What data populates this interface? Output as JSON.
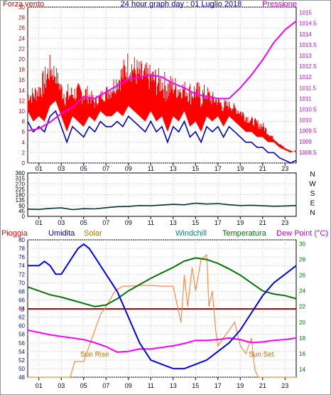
{
  "chart_data": [
    {
      "type": "line",
      "panel": "wind-pressure",
      "title": "24 hour graph day : 01 Luglio 2018",
      "left_label": "Forza vento",
      "right_label": "Pressione",
      "x_ticks": [
        "01",
        "03",
        "05",
        "07",
        "09",
        "11",
        "13",
        "15",
        "17",
        "19",
        "21",
        "23"
      ],
      "xlim": [
        0,
        24
      ],
      "y_left": {
        "min": 0,
        "max": 30,
        "ticks": [
          0,
          2,
          4,
          6,
          8,
          10,
          12,
          14,
          16,
          18,
          20,
          22,
          24,
          26,
          28,
          30
        ]
      },
      "y_right": {
        "min": 1008.0,
        "max": 1015.25,
        "ticks": [
          1008.5,
          1009,
          1009.5,
          1010,
          1010.5,
          1011,
          1011.5,
          1012,
          1012.5,
          1013,
          1013.5,
          1014,
          1014.5,
          1015
        ]
      },
      "series": [
        {
          "axis": "left",
          "color": "#ff0000",
          "style": "gust-bars",
          "points": [
            [
              0,
              14
            ],
            [
              1,
              16
            ],
            [
              2,
              21
            ],
            [
              2.5,
              19
            ],
            [
              3,
              16
            ],
            [
              4,
              15
            ],
            [
              5,
              16
            ],
            [
              6,
              13
            ],
            [
              7,
              15
            ],
            [
              8,
              18
            ],
            [
              9,
              22
            ],
            [
              10,
              20
            ],
            [
              11,
              19
            ],
            [
              12,
              18
            ],
            [
              13,
              17
            ],
            [
              14,
              16
            ],
            [
              15,
              16
            ],
            [
              16,
              15
            ],
            [
              17,
              13
            ],
            [
              18,
              12
            ],
            [
              19,
              11
            ],
            [
              20,
              9
            ],
            [
              21,
              8
            ],
            [
              22,
              5
            ],
            [
              23,
              3
            ],
            [
              24,
              2
            ]
          ]
        },
        {
          "axis": "left",
          "color": "#0000cc",
          "points": [
            [
              0,
              8
            ],
            [
              0.5,
              6
            ],
            [
              1,
              7
            ],
            [
              1.5,
              6
            ],
            [
              2,
              9
            ],
            [
              2.5,
              10
            ],
            [
              3,
              7
            ],
            [
              3.5,
              4
            ],
            [
              4,
              7
            ],
            [
              4.5,
              6
            ],
            [
              5,
              5
            ],
            [
              5.5,
              7
            ],
            [
              6,
              6
            ],
            [
              6.5,
              8
            ],
            [
              7,
              7
            ],
            [
              7.5,
              7
            ],
            [
              8,
              8
            ],
            [
              8.5,
              7
            ],
            [
              9,
              9
            ],
            [
              9.5,
              8
            ],
            [
              10,
              7
            ],
            [
              10.5,
              6
            ],
            [
              11,
              8
            ],
            [
              11.5,
              6
            ],
            [
              12,
              7
            ],
            [
              12.5,
              4
            ],
            [
              13,
              7
            ],
            [
              13.5,
              6
            ],
            [
              14,
              8
            ],
            [
              14.5,
              5
            ],
            [
              15,
              6
            ],
            [
              15.5,
              4
            ],
            [
              16,
              7
            ],
            [
              16.5,
              6
            ],
            [
              17,
              7
            ],
            [
              17.5,
              5
            ],
            [
              18,
              7
            ],
            [
              18.5,
              6
            ],
            [
              19,
              5
            ],
            [
              19.5,
              4
            ],
            [
              20,
              4
            ],
            [
              20.5,
              3
            ],
            [
              21,
              3
            ],
            [
              21.5,
              2
            ],
            [
              22,
              2
            ],
            [
              22.5,
              1
            ],
            [
              23,
              0.5
            ],
            [
              23.5,
              0
            ],
            [
              24,
              0.5
            ]
          ]
        },
        {
          "axis": "right",
          "color": "#ff00ff",
          "points": [
            [
              0,
              1009.5
            ],
            [
              1,
              1009.6
            ],
            [
              2,
              1009.9
            ],
            [
              3,
              1010.3
            ],
            [
              4,
              1010.6
            ],
            [
              5,
              1011.1
            ],
            [
              6,
              1011.0
            ],
            [
              7,
              1011.3
            ],
            [
              8,
              1011.6
            ],
            [
              9,
              1011.9
            ],
            [
              10,
              1012.0
            ],
            [
              11,
              1012.1
            ],
            [
              12,
              1012.0
            ],
            [
              13,
              1011.7
            ],
            [
              14,
              1011.5
            ],
            [
              15,
              1011.2
            ],
            [
              16,
              1011.1
            ],
            [
              17,
              1011.0
            ],
            [
              18,
              1011.0
            ],
            [
              19,
              1011.5
            ],
            [
              20,
              1012.1
            ],
            [
              21,
              1012.8
            ],
            [
              22,
              1013.6
            ],
            [
              23,
              1014.2
            ],
            [
              24,
              1014.6
            ]
          ]
        }
      ]
    },
    {
      "type": "line",
      "panel": "wind-direction",
      "x_ticks": [
        "01",
        "03",
        "05",
        "07",
        "09",
        "11",
        "13",
        "15",
        "17",
        "19",
        "21",
        "23"
      ],
      "xlim": [
        0,
        24
      ],
      "y_ticks": [
        0,
        45,
        90,
        135,
        180,
        225,
        270,
        315,
        360
      ],
      "ylim": [
        0,
        360
      ],
      "direction_labels": [
        "N",
        "W",
        "S",
        "E",
        "N"
      ],
      "series": [
        {
          "color": "#003333",
          "points": [
            [
              0,
              60
            ],
            [
              1,
              58
            ],
            [
              2,
              66
            ],
            [
              3,
              70
            ],
            [
              4,
              56
            ],
            [
              5,
              64
            ],
            [
              6,
              62
            ],
            [
              7,
              72
            ],
            [
              8,
              80
            ],
            [
              9,
              82
            ],
            [
              10,
              90
            ],
            [
              11,
              88
            ],
            [
              12,
              94
            ],
            [
              13,
              100
            ],
            [
              14,
              96
            ],
            [
              15,
              110
            ],
            [
              16,
              102
            ],
            [
              17,
              106
            ],
            [
              18,
              96
            ],
            [
              19,
              90
            ],
            [
              20,
              92
            ],
            [
              21,
              88
            ],
            [
              22,
              84
            ],
            [
              23,
              86
            ],
            [
              24,
              90
            ]
          ]
        }
      ]
    },
    {
      "type": "line",
      "panel": "temperature-humidity",
      "labels": {
        "rain": "Pioggia",
        "humidity": "Umidita",
        "solar": "Solar",
        "windchill": "Windchill",
        "temperature": "Temperatura",
        "dewpoint": "Dew Point (°C)"
      },
      "annotations": [
        "Sun Rise",
        "Sun Set"
      ],
      "x_ticks": [
        "01",
        "03",
        "05",
        "07",
        "09",
        "11",
        "13",
        "15",
        "17",
        "19",
        "21",
        "23"
      ],
      "xlim": [
        0,
        24
      ],
      "y_left": {
        "min": 48,
        "max": 80,
        "ticks": [
          48,
          50,
          52,
          54,
          56,
          58,
          60,
          62,
          64,
          66,
          68,
          70,
          72,
          74,
          76,
          78,
          80
        ]
      },
      "y_right": {
        "min": 13,
        "max": 30.5,
        "ticks": [
          14,
          16,
          18,
          20,
          22,
          24,
          26,
          28,
          30
        ]
      },
      "rain_level": 0,
      "series": [
        {
          "name": "Umidita",
          "axis": "left",
          "color": "#0000ff",
          "points": [
            [
              0,
              74
            ],
            [
              1,
              74
            ],
            [
              1.5,
              75
            ],
            [
              2,
              74
            ],
            [
              2.5,
              72
            ],
            [
              3,
              72
            ],
            [
              3.5,
              74
            ],
            [
              4,
              76
            ],
            [
              4.5,
              78
            ],
            [
              5,
              79
            ],
            [
              5.5,
              78
            ],
            [
              6,
              76
            ],
            [
              7,
              72
            ],
            [
              8,
              68
            ],
            [
              9,
              62
            ],
            [
              10,
              56
            ],
            [
              11,
              52
            ],
            [
              12,
              51
            ],
            [
              13,
              50
            ],
            [
              14,
              50
            ],
            [
              15,
              51
            ],
            [
              16,
              52
            ],
            [
              17,
              54
            ],
            [
              18,
              56
            ],
            [
              19,
              59
            ],
            [
              20,
              63
            ],
            [
              21,
              67
            ],
            [
              22,
              70
            ],
            [
              23,
              72
            ],
            [
              24,
              74
            ]
          ]
        },
        {
          "name": "Temperatura",
          "axis": "right",
          "color": "#007700",
          "points": [
            [
              0,
              24.5
            ],
            [
              1,
              24
            ],
            [
              2,
              23.5
            ],
            [
              3,
              23.2
            ],
            [
              4,
              22.8
            ],
            [
              5,
              22.4
            ],
            [
              6,
              22.0
            ],
            [
              7,
              22.2
            ],
            [
              8,
              23.0
            ],
            [
              9,
              24.0
            ],
            [
              10,
              24.8
            ],
            [
              11,
              25.6
            ],
            [
              12,
              26.3
            ],
            [
              13,
              27.0
            ],
            [
              14,
              27.8
            ],
            [
              15,
              28.2
            ],
            [
              16,
              28.0
            ],
            [
              17,
              27.5
            ],
            [
              18,
              26.8
            ],
            [
              19,
              26.0
            ],
            [
              20,
              25.0
            ],
            [
              21,
              24.0
            ],
            [
              22,
              23.6
            ],
            [
              23,
              23.4
            ],
            [
              24,
              23.0
            ]
          ]
        },
        {
          "name": "Dew Point",
          "axis": "right",
          "color": "#ff00ff",
          "points": [
            [
              0,
              19.0
            ],
            [
              1,
              18.7
            ],
            [
              2,
              18.4
            ],
            [
              3,
              18.2
            ],
            [
              4,
              18.0
            ],
            [
              5,
              17.8
            ],
            [
              6,
              17.4
            ],
            [
              7,
              16.9
            ],
            [
              8,
              16.2
            ],
            [
              9,
              16.3
            ],
            [
              10,
              16.6
            ],
            [
              11,
              16.6
            ],
            [
              12,
              16.8
            ],
            [
              13,
              17.0
            ],
            [
              14,
              17.3
            ],
            [
              15,
              17.7
            ],
            [
              16,
              17.7
            ],
            [
              17,
              17.8
            ],
            [
              18,
              18.0
            ],
            [
              19,
              17.8
            ],
            [
              20,
              17.4
            ],
            [
              21,
              17.5
            ],
            [
              22,
              17.7
            ],
            [
              23,
              17.8
            ],
            [
              24,
              18.0
            ]
          ]
        },
        {
          "name": "Solar",
          "axis": "right",
          "color": "#ff8844",
          "points": [
            [
              0,
              13
            ],
            [
              3.8,
              13
            ],
            [
              4.2,
              15
            ],
            [
              5,
              15
            ],
            [
              5.5,
              17
            ],
            [
              6,
              19
            ],
            [
              6.5,
              21
            ],
            [
              7,
              22
            ],
            [
              7.4,
              23
            ],
            [
              7.8,
              24
            ],
            [
              8.5,
              24.6
            ],
            [
              9,
              24.6
            ],
            [
              10,
              24.7
            ],
            [
              11,
              24.7
            ],
            [
              12,
              24.6
            ],
            [
              13,
              24.6
            ],
            [
              13.7,
              20
            ],
            [
              14,
              26
            ],
            [
              14.3,
              22
            ],
            [
              14.7,
              27
            ],
            [
              15,
              24
            ],
            [
              15.5,
              28
            ],
            [
              16,
              28.6
            ],
            [
              16.2,
              22
            ],
            [
              16.5,
              24
            ],
            [
              16.8,
              19
            ],
            [
              17,
              17
            ],
            [
              17.5,
              18
            ],
            [
              18,
              19
            ],
            [
              18.5,
              20
            ],
            [
              19,
              17
            ],
            [
              19.5,
              16
            ],
            [
              20,
              18
            ],
            [
              20.3,
              14
            ],
            [
              20.6,
              13
            ],
            [
              24,
              13
            ]
          ]
        }
      ]
    }
  ]
}
